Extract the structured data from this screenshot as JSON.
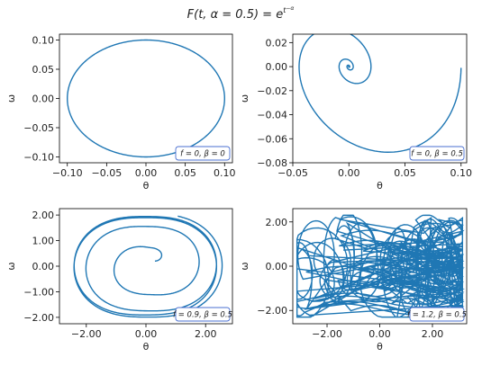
{
  "figure": {
    "title": "F(t, α = 0.5) = e^{t^{−α}}",
    "title_main": "F(t, α = 0.5) = e",
    "title_sup": "t",
    "title_supsup": "−α"
  },
  "chart_data": [
    {
      "type": "line",
      "panel": "top-left",
      "xlabel": "θ",
      "ylabel": "ω",
      "xlim": [
        -0.11,
        0.11
      ],
      "ylim": [
        -0.11,
        0.11
      ],
      "xticks": [
        -0.1,
        -0.05,
        0.0,
        0.05,
        0.1
      ],
      "xtick_labels": [
        "−0.10",
        "−0.05",
        "0.00",
        "0.05",
        "0.10"
      ],
      "yticks": [
        -0.1,
        -0.05,
        0.0,
        0.05,
        0.1
      ],
      "ytick_labels": [
        "−0.10",
        "−0.05",
        "0.00",
        "0.05",
        "0.10"
      ],
      "annotation": "f = 0, β = 0",
      "annotation_parts": {
        "f": "0",
        "beta": "0"
      },
      "trajectory": {
        "kind": "ellipse",
        "theta_amp": 0.1,
        "omega_amp": 0.1
      },
      "color": "#1f77b4"
    },
    {
      "type": "line",
      "panel": "top-right",
      "xlabel": "θ",
      "ylabel": "ω",
      "xlim": [
        -0.05,
        0.105
      ],
      "ylim": [
        -0.08,
        0.027
      ],
      "xticks": [
        -0.05,
        0.0,
        0.05,
        0.1
      ],
      "xtick_labels": [
        "−0.05",
        "0.00",
        "0.05",
        "0.10"
      ],
      "yticks": [
        -0.08,
        -0.06,
        -0.04,
        -0.02,
        0.0,
        0.02
      ],
      "ytick_labels": [
        "−0.08",
        "−0.06",
        "−0.04",
        "−0.02",
        "0.00",
        "0.02"
      ],
      "annotation": "f = 0, β = 0.5",
      "annotation_parts": {
        "f": "0",
        "beta": "0.5"
      },
      "trajectory": {
        "kind": "damped-spiral",
        "theta0": 0.1,
        "omega0": 0.0,
        "center": [
          0.0,
          0.0
        ]
      },
      "color": "#1f77b4"
    },
    {
      "type": "line",
      "panel": "bottom-left",
      "xlabel": "θ",
      "ylabel": "ω",
      "xlim": [
        -2.9,
        2.9
      ],
      "ylim": [
        -2.25,
        2.25
      ],
      "xticks": [
        -2.0,
        0.0,
        2.0
      ],
      "xtick_labels": [
        "−2.00",
        "0.00",
        "2.00"
      ],
      "yticks": [
        -2.0,
        -1.0,
        0.0,
        1.0,
        2.0
      ],
      "ytick_labels": [
        "−2.00",
        "−1.00",
        "0.00",
        "1.00",
        "2.00"
      ],
      "annotation": "f = 0.9, β = 0.5",
      "annotation_parts": {
        "f": "0.9",
        "beta": "0.5"
      },
      "trajectory": {
        "kind": "spiral-to-limit-cycle",
        "start": [
          0.25,
          0.2
        ],
        "cycle_theta_amp": 2.5,
        "cycle_omega_amp": 2.0
      },
      "color": "#1f77b4"
    },
    {
      "type": "line",
      "panel": "bottom-right",
      "xlabel": "θ",
      "ylabel": "ω",
      "xlim": [
        -3.3,
        3.3
      ],
      "ylim": [
        -2.6,
        2.6
      ],
      "xticks": [
        -2.0,
        0.0,
        2.0
      ],
      "xtick_labels": [
        "−2.00",
        "0.00",
        "2.00"
      ],
      "yticks": [
        -2.0,
        0.0,
        2.0
      ],
      "ytick_labels": [
        "−2.00",
        "0.00",
        "2.00"
      ],
      "annotation": "f = 1.2, β = 0.5",
      "annotation_parts": {
        "f": "1.2",
        "beta": "0.5"
      },
      "trajectory": {
        "kind": "chaotic",
        "theta_range": [
          -3.14,
          3.14
        ],
        "omega_range": [
          -2.3,
          2.3
        ]
      },
      "color": "#1f77b4"
    }
  ]
}
